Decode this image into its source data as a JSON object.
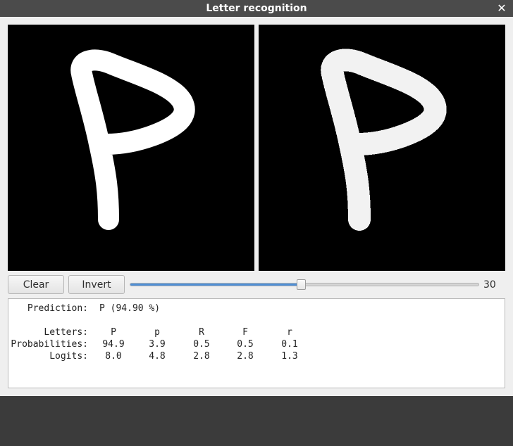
{
  "window": {
    "title": "Letter recognition",
    "close_glyph": "✕"
  },
  "toolbar": {
    "clear_label": "Clear",
    "invert_label": "Invert",
    "slider": {
      "value": 30,
      "fraction": 0.49
    }
  },
  "output": {
    "prediction_label": "Prediction:",
    "prediction_value": "P (94.90 %)",
    "letters_label": "Letters:",
    "probabilities_label": "Probabilities:",
    "logits_label": "Logits:",
    "letters": [
      "P",
      "p",
      "R",
      "F",
      "r"
    ],
    "probabilities": [
      "94.9",
      "3.9",
      "0.5",
      "0.5",
      "0.1"
    ],
    "logits": [
      "8.0",
      "4.8",
      "2.8",
      "2.8",
      "1.3"
    ]
  },
  "colors": {
    "canvas_bg": "#000000",
    "stroke": "#ffffff",
    "slider_fill": "#4f8fd6",
    "titlebar": "#4b4b4b"
  }
}
